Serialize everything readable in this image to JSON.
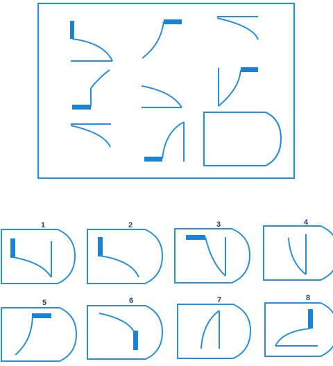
{
  "puzzle": {
    "stroke_color": "#2a8fd6",
    "fill_color": "#1a83d4",
    "answer_labels": [
      "1",
      "2",
      "3",
      "4",
      "5",
      "6",
      "7",
      "8"
    ]
  }
}
